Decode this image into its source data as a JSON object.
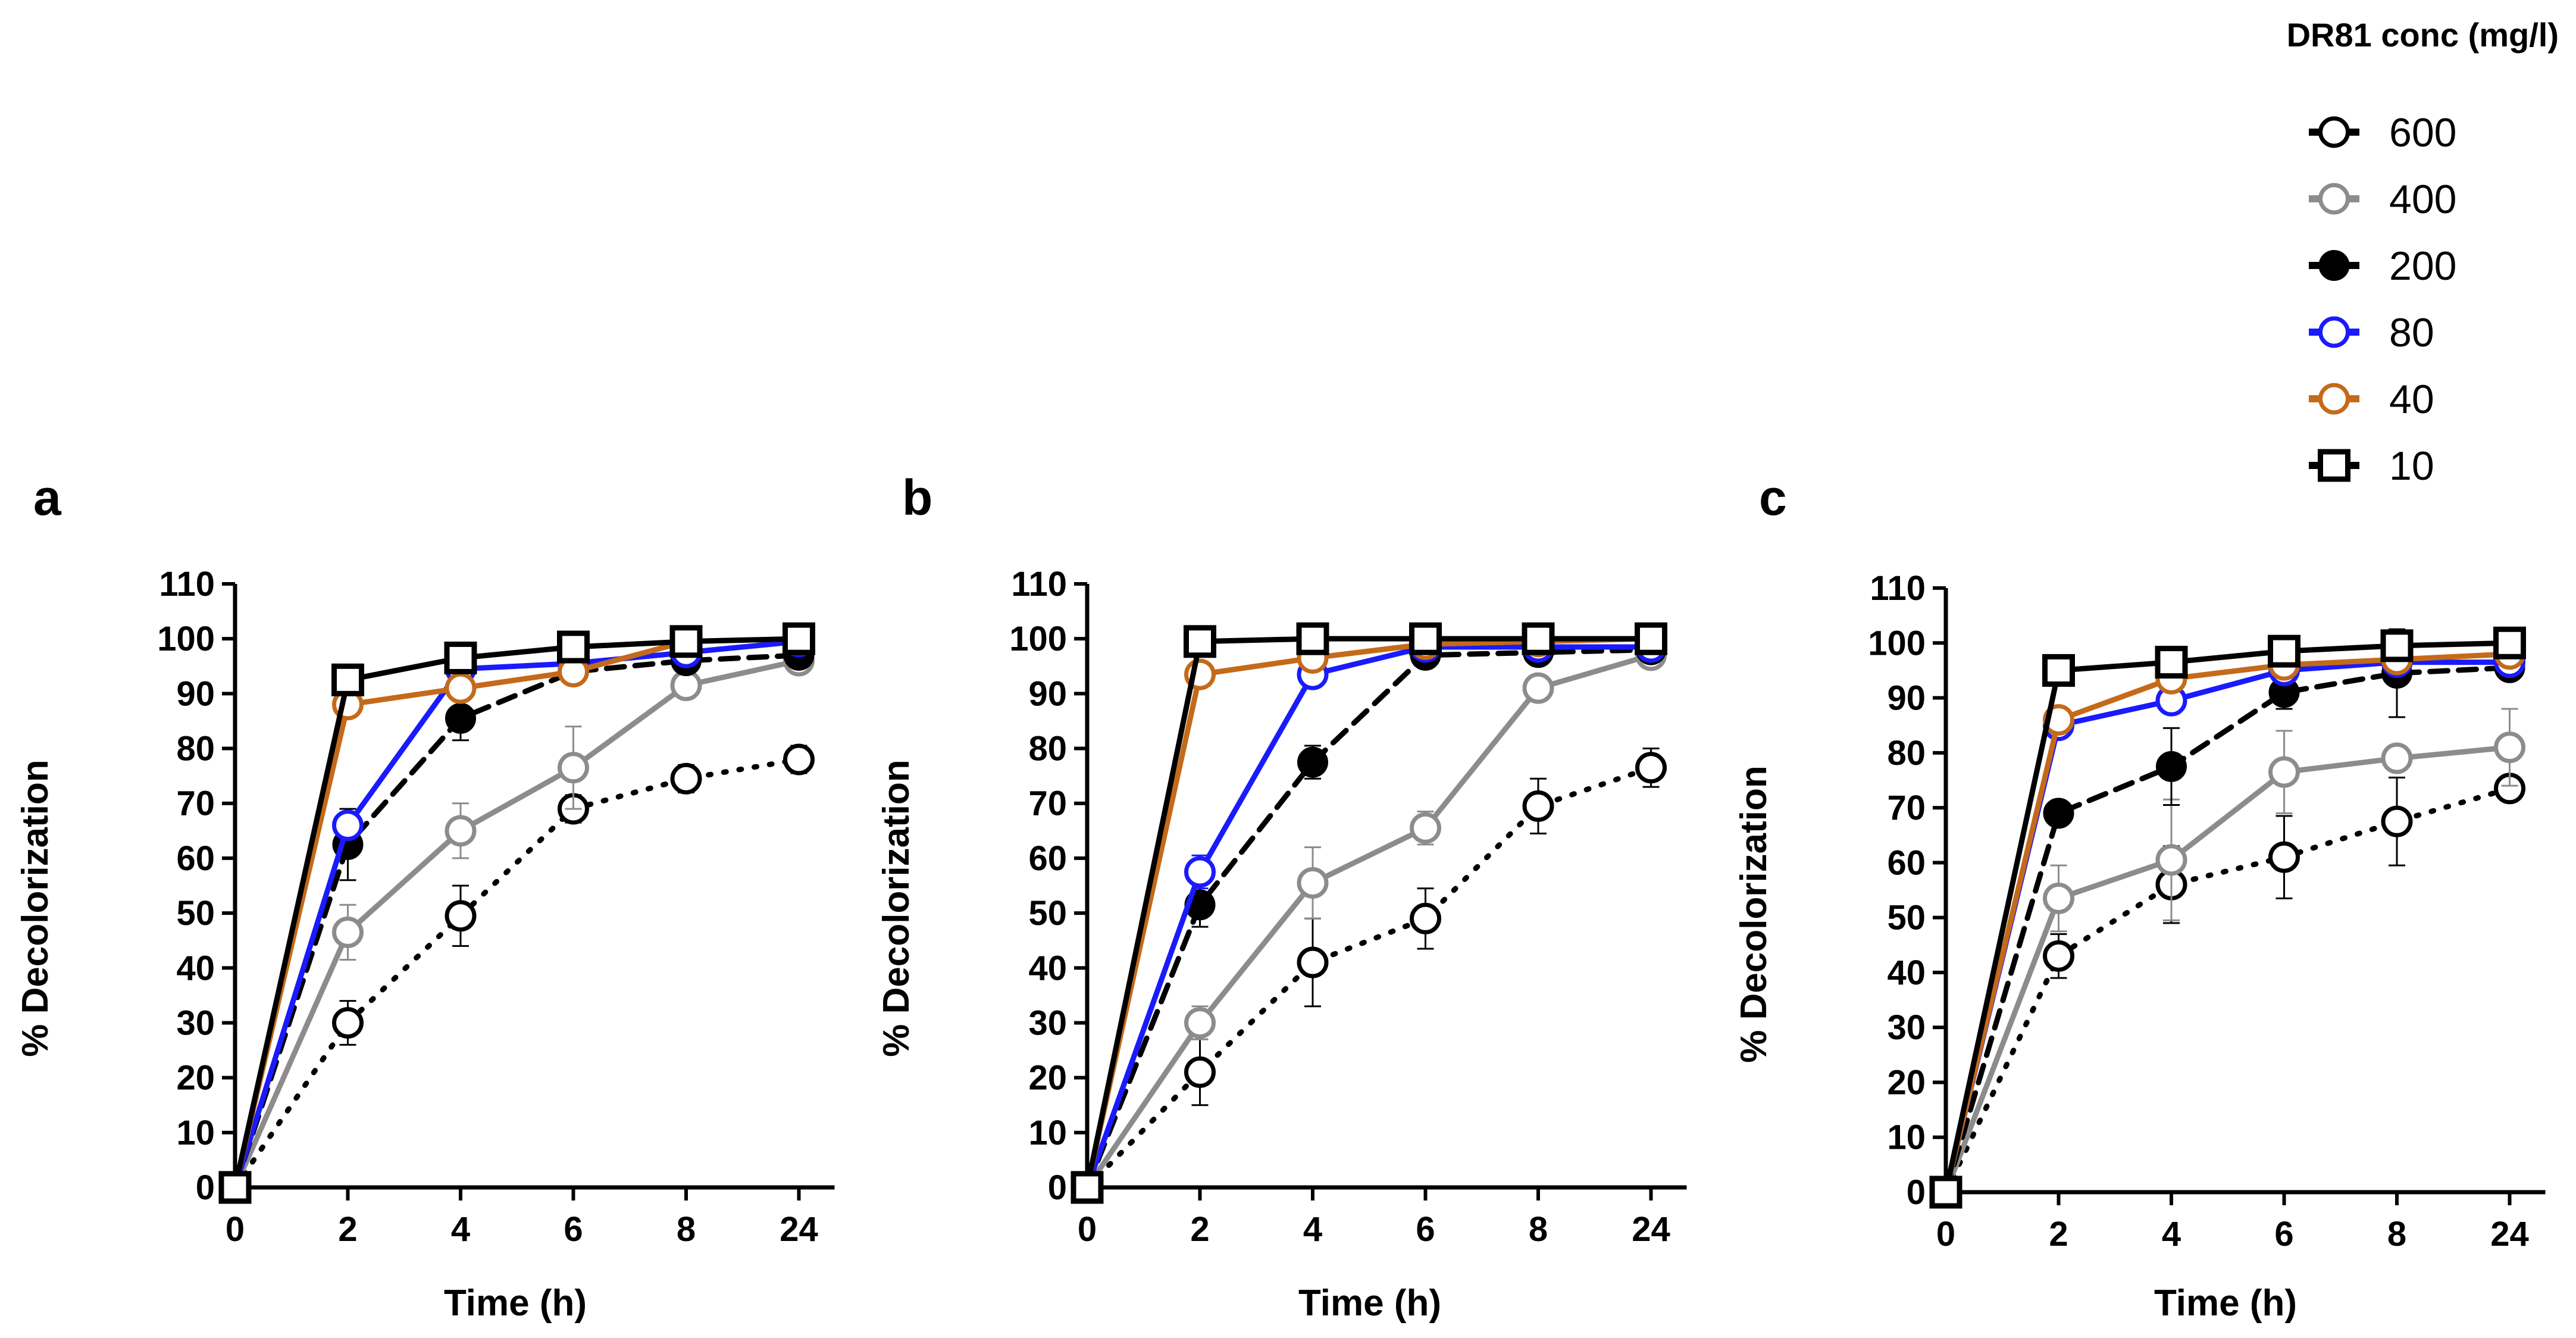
{
  "legend": {
    "title": "DR81 conc (mg/l)",
    "position": "top-right",
    "entries": [
      {
        "label": "600",
        "series_index": 0
      },
      {
        "label": "400",
        "series_index": 1
      },
      {
        "label": "200",
        "series_index": 2
      },
      {
        "label": "80",
        "series_index": 3
      },
      {
        "label": "40",
        "series_index": 4
      },
      {
        "label": "10",
        "series_index": 5
      }
    ]
  },
  "series_styles": [
    {
      "name": "600",
      "color": "#000000",
      "dash": "dotted",
      "marker": "open-circle"
    },
    {
      "name": "400",
      "color": "#8c8c8c",
      "dash": "solid",
      "marker": "open-circle"
    },
    {
      "name": "200",
      "color": "#000000",
      "dash": "dashed",
      "marker": "filled-circle"
    },
    {
      "name": "80",
      "color": "#1a1aff",
      "dash": "solid",
      "marker": "open-circle"
    },
    {
      "name": "40",
      "color": "#c46a1a",
      "dash": "solid",
      "marker": "open-circle"
    },
    {
      "name": "10",
      "color": "#000000",
      "dash": "solid",
      "marker": "open-square"
    }
  ],
  "chart_data": [
    {
      "type": "line",
      "panel": "a",
      "xlabel": "Time (h)",
      "ylabel": "% Decolorization",
      "categories": [
        "0",
        "2",
        "4",
        "6",
        "8",
        "24"
      ],
      "ylim": [
        0,
        110
      ],
      "yticks": [
        0,
        10,
        20,
        30,
        40,
        50,
        60,
        70,
        80,
        90,
        100,
        110
      ],
      "grid": false,
      "series": [
        {
          "name": "600",
          "values": [
            0,
            30,
            49.5,
            69,
            74.5,
            78
          ],
          "errors": [
            0,
            4,
            5.5,
            2.5,
            2.5,
            2.5
          ]
        },
        {
          "name": "400",
          "values": [
            0,
            46.5,
            65,
            76.5,
            91.5,
            96
          ],
          "errors": [
            0,
            5,
            5,
            7.5,
            1,
            1
          ]
        },
        {
          "name": "200",
          "values": [
            0,
            62.5,
            85.5,
            94,
            96,
            97
          ],
          "errors": [
            0,
            6.5,
            4,
            1,
            1,
            1
          ]
        },
        {
          "name": "80",
          "values": [
            0,
            66,
            94.5,
            95.5,
            97.5,
            99.5
          ],
          "errors": [
            0,
            2,
            1,
            1,
            1,
            0.5
          ]
        },
        {
          "name": "40",
          "values": [
            0,
            88,
            91,
            94,
            99.5,
            100
          ],
          "errors": [
            0,
            1,
            1,
            1,
            0.5,
            0.5
          ]
        },
        {
          "name": "10",
          "values": [
            0,
            92.5,
            96.5,
            98.5,
            99.5,
            100
          ],
          "errors": [
            0,
            1,
            0.5,
            0.5,
            0.5,
            0.5
          ]
        }
      ]
    },
    {
      "type": "line",
      "panel": "b",
      "xlabel": "Time (h)",
      "ylabel": "% Decolorization",
      "categories": [
        "0",
        "2",
        "4",
        "6",
        "8",
        "24"
      ],
      "ylim": [
        0,
        110
      ],
      "yticks": [
        0,
        10,
        20,
        30,
        40,
        50,
        60,
        70,
        80,
        90,
        100,
        110
      ],
      "grid": false,
      "series": [
        {
          "name": "600",
          "values": [
            0,
            21,
            41,
            49,
            69.5,
            76.5
          ],
          "errors": [
            0,
            6,
            8,
            5.5,
            5,
            3.5
          ]
        },
        {
          "name": "400",
          "values": [
            0,
            30,
            55.5,
            65.5,
            91,
            97
          ],
          "errors": [
            0,
            3,
            6.5,
            3,
            1,
            1
          ]
        },
        {
          "name": "200",
          "values": [
            0,
            51.5,
            77.5,
            97,
            97.5,
            98
          ],
          "errors": [
            0,
            4,
            3,
            1,
            1,
            1
          ]
        },
        {
          "name": "80",
          "values": [
            0,
            57.5,
            93.5,
            98.5,
            98.5,
            98.5
          ],
          "errors": [
            0,
            3,
            1.5,
            0.5,
            0.5,
            0.5
          ]
        },
        {
          "name": "40",
          "values": [
            0,
            93.5,
            96.5,
            99,
            99.5,
            100
          ],
          "errors": [
            0,
            1,
            0.5,
            0.5,
            0.5,
            0.5
          ]
        },
        {
          "name": "10",
          "values": [
            0,
            99.5,
            100,
            100,
            100,
            100
          ],
          "errors": [
            0,
            0.5,
            0.5,
            0.5,
            0.5,
            0.5
          ]
        }
      ]
    },
    {
      "type": "line",
      "panel": "c",
      "xlabel": "Time (h)",
      "ylabel": "% Decolorization",
      "categories": [
        "0",
        "2",
        "4",
        "6",
        "8",
        "24"
      ],
      "ylim": [
        0,
        110
      ],
      "yticks": [
        0,
        10,
        20,
        30,
        40,
        50,
        60,
        70,
        80,
        90,
        100,
        110
      ],
      "grid": false,
      "series": [
        {
          "name": "600",
          "values": [
            0,
            43,
            56,
            61,
            67.5,
            73.5
          ],
          "errors": [
            0,
            4,
            7,
            7.5,
            8,
            1.5
          ]
        },
        {
          "name": "400",
          "values": [
            0,
            53.5,
            60.5,
            76.5,
            79,
            81
          ],
          "errors": [
            0,
            6,
            11,
            7.5,
            1,
            7
          ]
        },
        {
          "name": "200",
          "values": [
            0,
            69,
            77.5,
            91,
            94.5,
            95.5
          ],
          "errors": [
            0,
            2,
            7,
            3,
            8,
            2
          ]
        },
        {
          "name": "80",
          "values": [
            0,
            85,
            89.5,
            95,
            96.5,
            96.5
          ],
          "errors": [
            0,
            1.5,
            1.5,
            2,
            1,
            1
          ]
        },
        {
          "name": "40",
          "values": [
            0,
            86,
            93.5,
            96,
            97,
            98
          ],
          "errors": [
            0,
            1,
            1.5,
            1,
            0.5,
            0.5
          ]
        },
        {
          "name": "10",
          "values": [
            0,
            95,
            96.5,
            98.5,
            99.5,
            100
          ],
          "errors": [
            0,
            1,
            0.5,
            0.5,
            0.5,
            0.5
          ]
        }
      ]
    }
  ]
}
